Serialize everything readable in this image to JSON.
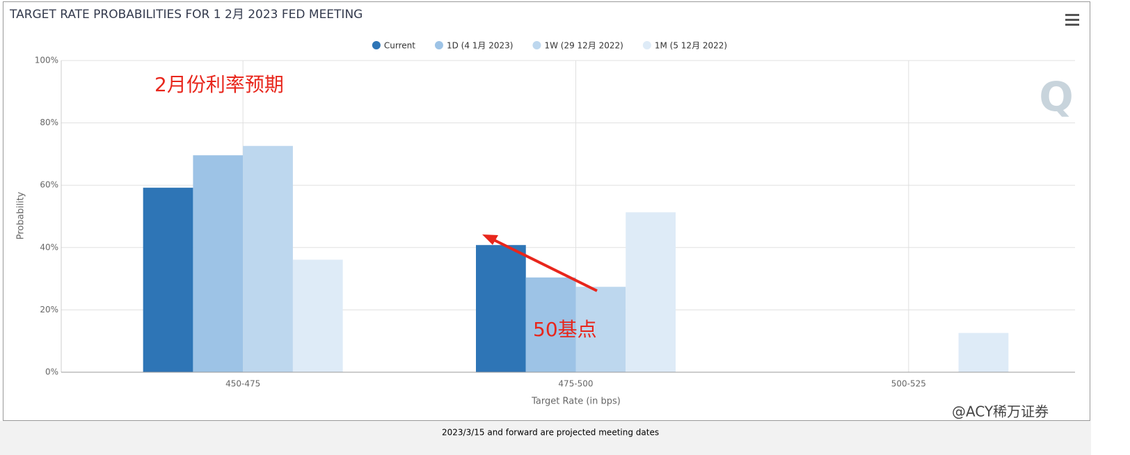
{
  "chart_data": {
    "type": "bar",
    "title": "TARGET RATE PROBABILITIES FOR 1 2月 2023 FED MEETING",
    "categories": [
      "450-475",
      "475-500",
      "500-525"
    ],
    "series": [
      {
        "name": "Current",
        "color": "#2e75b6",
        "values": [
          59.2,
          40.8,
          0
        ]
      },
      {
        "name": "1D (4 1月 2023)",
        "color": "#9dc3e6",
        "values": [
          69.6,
          30.4,
          0
        ]
      },
      {
        "name": "1W (29 12月 2022)",
        "color": "#bdd7ee",
        "values": [
          72.6,
          27.4,
          0
        ]
      },
      {
        "name": "1M (5 12月 2022)",
        "color": "#deebf7",
        "values": [
          36.1,
          51.3,
          12.6
        ]
      }
    ],
    "ylim": [
      0,
      100
    ],
    "yticks": [
      {
        "value": 0,
        "label": "0%"
      },
      {
        "value": 20,
        "label": "20%"
      },
      {
        "value": 40,
        "label": "40%"
      },
      {
        "value": 60,
        "label": "60%"
      },
      {
        "value": 80,
        "label": "80%"
      },
      {
        "value": 100,
        "label": "100%"
      }
    ],
    "grid": true,
    "y_label": "Probability",
    "x_label": "Target Rate (in bps)",
    "annotations": [
      "2月份利率预期",
      "50基点"
    ],
    "footer": "2023/3/15 and forward are projected meeting dates",
    "watermark": "@ACY稀万证券"
  }
}
